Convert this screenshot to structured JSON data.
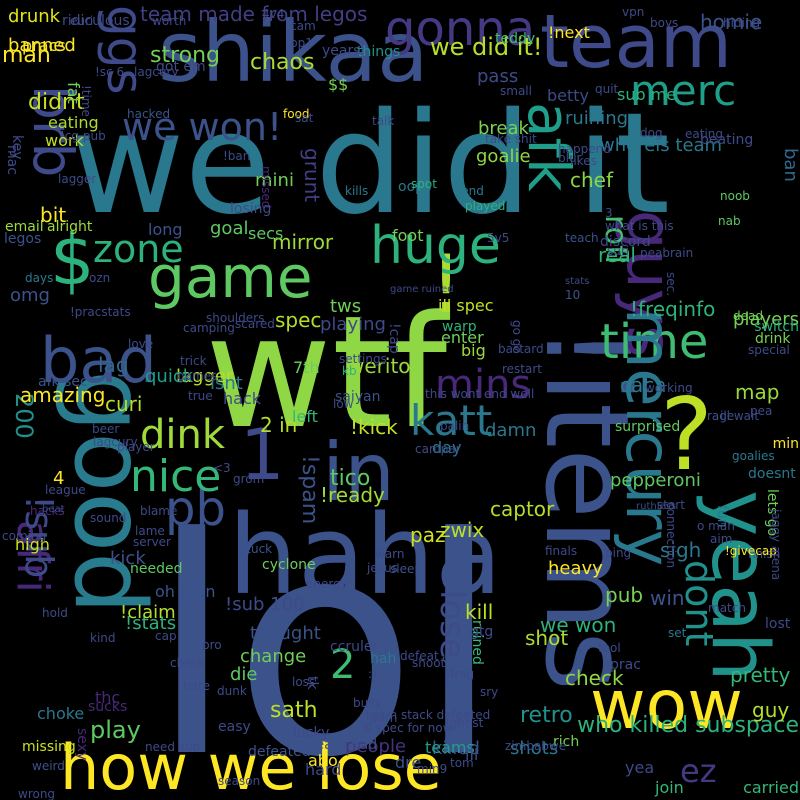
{
  "words": [
    {
      "text": "lol",
      "color": "#3b528b"
    },
    {
      "text": "wtf",
      "color": "#8fd744"
    },
    {
      "text": "we did it",
      "color": "#2a788e"
    },
    {
      "text": "!items",
      "color": "#3b528b"
    },
    {
      "text": "haha",
      "color": "#3b528b"
    },
    {
      "text": "good",
      "color": "#287c8e"
    },
    {
      "text": "shikaa",
      "color": "#3b528b"
    },
    {
      "text": "team",
      "color": "#3e4a89"
    },
    {
      "text": "how we lose",
      "color": "#fde725"
    },
    {
      "text": "wow",
      "color": "#fde725"
    },
    {
      "text": "?",
      "color": "#bddf26"
    },
    {
      "text": "yeah",
      "color": "#21918c"
    },
    {
      "text": "$",
      "color": "#2db27d"
    },
    {
      "text": "!",
      "color": "#addc30"
    },
    {
      "text": "in",
      "color": "#3b528b"
    },
    {
      "text": "1",
      "color": "#3e4a89"
    },
    {
      "text": "bad",
      "color": "#3b528b"
    },
    {
      "text": "game",
      "color": "#5ec962"
    },
    {
      "text": "guys",
      "color": "#482878"
    },
    {
      "text": "huge",
      "color": "#2db27d"
    },
    {
      "text": "afk",
      "color": "#1f9e89"
    },
    {
      "text": "time",
      "color": "#3fbc73"
    },
    {
      "text": "brb",
      "color": "#3e4a89"
    },
    {
      "text": "we won!",
      "color": "#3b528b"
    },
    {
      "text": "gonna",
      "color": "#443983"
    },
    {
      "text": "merc",
      "color": "#1f9e89"
    },
    {
      "text": "ggs",
      "color": "#3e4a89"
    },
    {
      "text": "mercury",
      "color": "#2a788e"
    },
    {
      "text": "afri",
      "color": "#482878"
    },
    {
      "text": "!sub",
      "color": "#3e4a89"
    },
    {
      "text": "pb",
      "color": "#3b528b"
    },
    {
      "text": "nice",
      "color": "#35b779"
    },
    {
      "text": "dink",
      "color": "#9fda3a"
    },
    {
      "text": "katt",
      "color": "#2a788e"
    },
    {
      "text": "mins",
      "color": "#482878"
    },
    {
      "text": "zone",
      "color": "#2db27d"
    },
    {
      "text": "lose",
      "color": "#3e4a89"
    },
    {
      "text": "dont",
      "color": "#21918c"
    },
    {
      "text": "ez",
      "color": "#443983"
    },
    {
      "text": "rofl",
      "color": "#44bf70"
    },
    {
      "text": "2",
      "color": "#3fbc73"
    },
    {
      "text": "!sub 100",
      "color": "#3e4a89"
    },
    {
      "text": "team made from legos",
      "color": "#433e85"
    },
    {
      "text": "strong",
      "color": "#73d056"
    },
    {
      "text": "chaos",
      "color": "#addc30"
    },
    {
      "text": "we did it!",
      "color": "#b8de29"
    },
    {
      "text": "!freqinfo",
      "color": "#2db27d"
    },
    {
      "text": "200",
      "color": "#21918c"
    },
    {
      "text": "who killed subspace",
      "color": "#2db27d"
    },
    {
      "text": "play",
      "color": "#5ec962"
    },
    {
      "text": "sath",
      "color": "#bddf26"
    },
    {
      "text": "people",
      "color": "#46327e"
    },
    {
      "text": "retro",
      "color": "#21918c"
    },
    {
      "text": "we won",
      "color": "#2db27d"
    },
    {
      "text": "pretty",
      "color": "#35b779"
    },
    {
      "text": "check",
      "color": "#90d743"
    },
    {
      "text": "shot",
      "color": "#addc30"
    },
    {
      "text": "kill",
      "color": "#bddf26"
    },
    {
      "text": "pub",
      "color": "#7ad151"
    },
    {
      "text": "win",
      "color": "#3b528b"
    },
    {
      "text": "sigh",
      "color": "#2a788e"
    },
    {
      "text": "captor",
      "color": "#b5de2b"
    },
    {
      "text": "zwix",
      "color": "#bddf26"
    },
    {
      "text": "paz",
      "color": "#d2e21b"
    },
    {
      "text": "tico",
      "color": "#5ec962"
    },
    {
      "text": "!ready",
      "color": "#a2da37"
    },
    {
      "text": "!spam",
      "color": "#3b528b"
    },
    {
      "text": "!kick",
      "color": "#c2df23"
    },
    {
      "text": "2 in",
      "color": "#b5de2b"
    },
    {
      "text": "werito",
      "color": "#9bd93c"
    },
    {
      "text": "caca",
      "color": "#2a788e"
    },
    {
      "text": "map",
      "color": "#9bd93c"
    },
    {
      "text": "real",
      "color": "#2db27d"
    },
    {
      "text": "players",
      "color": "#75d054"
    },
    {
      "text": "ban",
      "color": "#31688e"
    },
    {
      "text": "chef",
      "color": "#8bd646"
    },
    {
      "text": "mini",
      "color": "#6ece58"
    },
    {
      "text": "goal",
      "color": "#5ec962"
    },
    {
      "text": "mirror",
      "color": "#9fda3a"
    },
    {
      "text": "tws",
      "color": "#6ece58"
    },
    {
      "text": "playing",
      "color": "#3e4a89"
    },
    {
      "text": "grunt",
      "color": "#433e85"
    },
    {
      "text": "spec",
      "color": "#b5de2b"
    },
    {
      "text": "lagger",
      "color": "#b5de2b"
    },
    {
      "text": "isnt",
      "color": "#2a788e"
    },
    {
      "text": "quick",
      "color": "#1f9e89"
    },
    {
      "text": "curi",
      "color": "#b8de29"
    },
    {
      "text": "lag",
      "color": "#31688e"
    },
    {
      "text": "omg",
      "color": "#3b528b"
    },
    {
      "text": "bit",
      "color": "#fde725"
    },
    {
      "text": "didnt",
      "color": "#c8e020"
    },
    {
      "text": "man",
      "color": "#fde725"
    },
    {
      "text": "banned",
      "color": "#fde725"
    },
    {
      "text": "drunk",
      "color": "#e2e418"
    },
    {
      "text": "homie",
      "color": "#3b528b"
    },
    {
      "text": "pass",
      "color": "#3e4a89"
    },
    {
      "text": "break",
      "color": "#7ad151"
    },
    {
      "text": "goalie",
      "color": "#8fd744"
    },
    {
      "text": "ruining",
      "color": "#2a788e"
    },
    {
      "text": "whereis team",
      "color": "#2a788e"
    },
    {
      "text": "!next",
      "color": "#fde725"
    },
    {
      "text": "betty",
      "color": "#3e4a89"
    },
    {
      "text": "long",
      "color": "#3b528b"
    },
    {
      "text": "secs",
      "color": "#5ec962"
    },
    {
      "text": "ill spec",
      "color": "#c2df23"
    },
    {
      "text": "big",
      "color": "#9fda3a"
    },
    {
      "text": "enter",
      "color": "#73d056"
    },
    {
      "text": "7th",
      "color": "#6ece58"
    },
    {
      "text": "hack",
      "color": "#3e4a89"
    },
    {
      "text": "left",
      "color": "#35b779"
    },
    {
      "text": "thought",
      "color": "#3b528b"
    },
    {
      "text": "change",
      "color": "#6ece58"
    },
    {
      "text": "die",
      "color": "#5ec962"
    },
    {
      "text": "oh man",
      "color": "#3b528b"
    },
    {
      "text": "kick",
      "color": "#3b528b"
    },
    {
      "text": "high",
      "color": "#cde11d"
    },
    {
      "text": "4",
      "color": "#fde725"
    },
    {
      "text": "!stats",
      "color": "#2db27d"
    },
    {
      "text": "!claim",
      "color": "#b5de2b"
    },
    {
      "text": "sucks",
      "color": "#482878"
    },
    {
      "text": "choke",
      "color": "#2a788e"
    },
    {
      "text": "thc",
      "color": "#482878"
    },
    {
      "text": "killed",
      "color": "#3b528b"
    },
    {
      "text": "shots",
      "color": "#2a788e"
    },
    {
      "text": "teams",
      "color": "#1f9e89"
    },
    {
      "text": "abo",
      "color": "#fde725"
    },
    {
      "text": "hard",
      "color": "#3e4a89"
    },
    {
      "text": "dre",
      "color": "#3b528b"
    },
    {
      "text": "ill",
      "color": "#3e4a89"
    },
    {
      "text": "yea",
      "color": "#3e4a89"
    },
    {
      "text": "join",
      "color": "#35b779"
    },
    {
      "text": "carried",
      "color": "#35b779"
    },
    {
      "text": "guy",
      "color": "#b5de2b"
    },
    {
      "text": "heavy",
      "color": "#fde725"
    },
    {
      "text": "damn",
      "color": "#2a788e"
    },
    {
      "text": "pepperoni",
      "color": "#5ec962"
    },
    {
      "text": "day",
      "color": "#2a788e"
    },
    {
      "text": "needed",
      "color": "#5ec962"
    },
    {
      "text": "surprised",
      "color": "#5ec962"
    },
    {
      "text": "ccruler",
      "color": "#3e4a89"
    },
    {
      "text": "hah",
      "color": "#2a788e"
    },
    {
      "text": "ruined",
      "color": "#35b779"
    },
    {
      "text": "saiyan",
      "color": "#3b528b"
    },
    {
      "text": "$$",
      "color": "#75d054"
    },
    {
      "text": "teddy",
      "color": "#44bf70"
    },
    {
      "text": "things",
      "color": "#21918c"
    },
    {
      "text": "sub me",
      "color": "#2db27d"
    },
    {
      "text": "eating",
      "color": "#addc30"
    },
    {
      "text": "work",
      "color": "#c2df23"
    },
    {
      "text": "fat",
      "color": "#6ece58"
    },
    {
      "text": "pracs",
      "color": "#fde725"
    },
    {
      "text": "legos",
      "color": "#3b528b"
    },
    {
      "text": "email",
      "color": "#9bd93c"
    },
    {
      "text": "alright",
      "color": "#9fda3a"
    },
    {
      "text": "foot",
      "color": "#75d054"
    },
    {
      "text": "ridiculous",
      "color": "#3e4a89"
    },
    {
      "text": "4v4",
      "color": "#3e4a89"
    },
    {
      "text": "cam",
      "color": "#3e4a89"
    },
    {
      "text": "hacked",
      "color": "#3b528b"
    },
    {
      "text": "oops",
      "color": "#2a788e"
    },
    {
      "text": "send",
      "color": "#2a788e"
    },
    {
      "text": "played",
      "color": "#2db27d"
    },
    {
      "text": "kills",
      "color": "#2a788e"
    },
    {
      "text": "spot",
      "color": "#2db27d"
    },
    {
      "text": "noob",
      "color": "#5ec962"
    },
    {
      "text": "nab",
      "color": "#5ec962"
    },
    {
      "text": "dead",
      "color": "#75d054"
    },
    {
      "text": "drink",
      "color": "#75d054"
    },
    {
      "text": "switch",
      "color": "#2db27d"
    },
    {
      "text": "min",
      "color": "#fde725"
    },
    {
      "text": "pea",
      "color": "#3e4a89"
    },
    {
      "text": "doesnt",
      "color": "#2a788e"
    },
    {
      "text": "lets go",
      "color": "#6ece58"
    },
    {
      "text": "finish",
      "color": "#3e4a89"
    },
    {
      "text": "lost",
      "color": "#3e4a89"
    },
    {
      "text": "set",
      "color": "#2a788e"
    },
    {
      "text": "mac",
      "color": "#3e4a89"
    },
    {
      "text": "key",
      "color": "#3e4a89"
    },
    {
      "text": "days",
      "color": "#2a788e"
    },
    {
      "text": "amazing",
      "color": "#fde725"
    },
    {
      "text": "hacks",
      "color": "#482878"
    },
    {
      "text": "coming",
      "color": "#3e4a89"
    },
    {
      "text": "missing",
      "color": "#cde11d"
    },
    {
      "text": "weird",
      "color": "#3b528b"
    },
    {
      "text": "wrong",
      "color": "#3e4a89"
    },
    {
      "text": "sexy",
      "color": "#482878"
    },
    {
      "text": "lucky",
      "color": "#3e4a89"
    },
    {
      "text": "team bad",
      "color": "#3b528b"
    },
    {
      "text": "easy",
      "color": "#3e4a89"
    },
    {
      "text": "defeated",
      "color": "#3b528b"
    },
    {
      "text": "season",
      "color": "#3e4a89"
    },
    {
      "text": "darn",
      "color": "#3e4a89"
    },
    {
      "text": "rich",
      "color": "#75d054"
    },
    {
      "text": "tom",
      "color": "#3e4a89"
    },
    {
      "text": "grab",
      "color": "#3b528b"
    },
    {
      "text": "gtg",
      "color": "#3e4a89"
    },
    {
      "text": "prac",
      "color": "#3e4a89"
    },
    {
      "text": "sleep",
      "color": "#3b528b"
    },
    {
      "text": "warn",
      "color": "#3e4a89"
    },
    {
      "text": "finals",
      "color": "#3e4a89"
    },
    {
      "text": "fun",
      "color": "#2a788e"
    },
    {
      "text": "o man",
      "color": "#3e4a89"
    },
    {
      "text": "aim",
      "color": "#3e4a89"
    },
    {
      "text": "match",
      "color": "#3e4a89"
    },
    {
      "text": "tool",
      "color": "#3e4a89"
    },
    {
      "text": "cyclone",
      "color": "#6ece58"
    },
    {
      "text": "stuck",
      "color": "#3b528b"
    },
    {
      "text": "jesus",
      "color": "#3e4a89"
    },
    {
      "text": "energy",
      "color": "#3e4a89"
    },
    {
      "text": "warp",
      "color": "#2db27d"
    },
    {
      "text": "go go",
      "color": "#3e4a89"
    },
    {
      "text": "!cap",
      "color": "#3e4a89"
    },
    {
      "text": "rage",
      "color": "#3b528b"
    },
    {
      "text": "goalies",
      "color": "#2a788e"
    },
    {
      "text": "!givecap",
      "color": "#fde725"
    },
    {
      "text": "afk sec",
      "color": "#3b528b"
    },
    {
      "text": "game ruined",
      "color": "#3e4a89"
    },
    {
      "text": "tk",
      "color": "#3e4a89"
    },
    {
      "text": "kb",
      "color": "#2db27d"
    },
    {
      "text": "ozn",
      "color": "#3e4a89"
    },
    {
      "text": "!pracstats",
      "color": "#3e4a89"
    },
    {
      "text": "5v5",
      "color": "#3e4a89"
    },
    {
      "text": "discord",
      "color": "#3e4a89"
    },
    {
      "text": "teach",
      "color": "#3b528b"
    },
    {
      "text": "suri",
      "color": "#3e4a89"
    },
    {
      "text": "stats",
      "color": "#3e4a89"
    },
    {
      "text": "10",
      "color": "#3b528b"
    },
    {
      "text": "missed",
      "color": "#482878"
    },
    {
      "text": "losing",
      "color": "#3e4a89"
    },
    {
      "text": "peabrain",
      "color": "#3e4a89"
    },
    {
      "text": "beating",
      "color": "#3e4a89"
    },
    {
      "text": "hiding",
      "color": "#3e4a89"
    },
    {
      "text": "vpn",
      "color": "#3e4a89"
    },
    {
      "text": "boys",
      "color": "#3e4a89"
    },
    {
      "text": "quit",
      "color": "#3e4a89"
    },
    {
      "text": "small",
      "color": "#3e4a89"
    },
    {
      "text": "food",
      "color": "#fde725"
    },
    {
      "text": "years",
      "color": "#3e4a89"
    },
    {
      "text": "sat",
      "color": "#3e4a89"
    },
    {
      "text": "talk",
      "color": "#3e4a89"
    },
    {
      "text": "!ban",
      "color": "#3e4a89"
    },
    {
      "text": "happend",
      "color": "#3e4a89"
    },
    {
      "text": "blur",
      "color": "#3e4a89"
    },
    {
      "text": "dog",
      "color": "#3e4a89"
    },
    {
      "text": "eating",
      "color": "#3e4a89"
    },
    {
      "text": "likes",
      "color": "#3e4a89"
    },
    {
      "text": "what is this",
      "color": "#3e4a89"
    },
    {
      "text": "3",
      "color": "#3e4a89"
    },
    {
      "text": "bastard",
      "color": "#3e4a89"
    },
    {
      "text": "settings",
      "color": "#3e4a89"
    },
    {
      "text": "restart",
      "color": "#3e4a89"
    },
    {
      "text": "trick",
      "color": "#3e4a89"
    },
    {
      "text": "games",
      "color": "#3e4a89"
    },
    {
      "text": "love",
      "color": "#3e4a89"
    },
    {
      "text": "camping",
      "color": "#3e4a89"
    },
    {
      "text": "shoulders",
      "color": "#3e4a89"
    },
    {
      "text": "scared",
      "color": "#3e4a89"
    },
    {
      "text": "true",
      "color": "#3e4a89"
    },
    {
      "text": "beer",
      "color": "#3e4a89"
    },
    {
      "text": "league",
      "color": "#3e4a89"
    },
    {
      "text": "lagcury",
      "color": "#3e4a89"
    },
    {
      "text": "player",
      "color": "#3e4a89"
    },
    {
      "text": "sound",
      "color": "#3e4a89"
    },
    {
      "text": "lame",
      "color": "#3e4a89"
    },
    {
      "text": "server",
      "color": "#3e4a89"
    },
    {
      "text": "kind",
      "color": "#3e4a89"
    },
    {
      "text": "cap",
      "color": "#3e4a89"
    },
    {
      "text": "pro",
      "color": "#3e4a89"
    },
    {
      "text": "dunk",
      "color": "#3e4a89"
    },
    {
      "text": "hate",
      "color": "#3e4a89"
    },
    {
      "text": "loss",
      "color": "#3e4a89"
    },
    {
      "text": "bully",
      "color": "#3e4a89"
    },
    {
      "text": "team stack defeated",
      "color": "#3e4a89"
    },
    {
      "text": "ill spec for now",
      "color": "#3e4a89"
    },
    {
      "text": "need sub",
      "color": "#3e4a89"
    },
    {
      "text": "sry",
      "color": "#3e4a89"
    },
    {
      "text": "zimbabwe",
      "color": "#3e4a89"
    },
    {
      "text": "defeat",
      "color": "#3e4a89"
    },
    {
      "text": "shoot",
      "color": "#3e4a89"
    },
    {
      "text": "start",
      "color": "#3e4a89"
    },
    {
      "text": "connection",
      "color": "#3e4a89"
    },
    {
      "text": "ruthless",
      "color": "#3e4a89"
    },
    {
      "text": "jaggy arena",
      "color": "#3e4a89"
    },
    {
      "text": "ill wait",
      "color": "#3e4a89"
    },
    {
      "text": "special",
      "color": "#3e4a89"
    },
    {
      "text": "this wont end well",
      "color": "#3e4a89"
    },
    {
      "text": "working",
      "color": "#3e4a89"
    },
    {
      "text": "low",
      "color": "#3e4a89"
    },
    {
      "text": "palin",
      "color": "#3e4a89"
    },
    {
      "text": "campar",
      "color": "#3e4a89"
    },
    {
      "text": "take shit",
      "color": "#3e4a89"
    },
    {
      "text": "lagger",
      "color": "#3e4a89"
    },
    {
      "text": "!cg pub",
      "color": "#3e4a89"
    },
    {
      "text": "!time",
      "color": "#3e4a89"
    },
    {
      "text": "euri",
      "color": "#3e4a89"
    },
    {
      "text": "worth",
      "color": "#3e4a89"
    },
    {
      "text": "pp1",
      "color": "#3e4a89"
    },
    {
      "text": "got em",
      "color": "#3e4a89"
    },
    {
      "text": "lagcury",
      "color": "#3e4a89"
    },
    {
      "text": "!sc 6",
      "color": "#3e4a89"
    },
    {
      "text": "sec.",
      "color": "#3e4a89"
    },
    {
      "text": "beat",
      "color": "#3e4a89"
    },
    {
      "text": "hold",
      "color": "#3e4a89"
    },
    {
      "text": "blame",
      "color": "#3e4a89"
    },
    {
      "text": "check",
      "color": "#3e4a89"
    },
    {
      "text": "<3",
      "color": "#3e4a89"
    },
    {
      "text": "grom",
      "color": "#3e4a89"
    },
    {
      "text": ":)",
      "color": "#3e4a89"
    },
    {
      "text": "ping",
      "color": "#3e4a89"
    },
    {
      "text": "frag",
      "color": "#3e4a89"
    },
    {
      "text": "!ghost",
      "color": "#3e4a89"
    },
    {
      "text": "min9",
      "color": "#3e4a89"
    }
  ]
}
